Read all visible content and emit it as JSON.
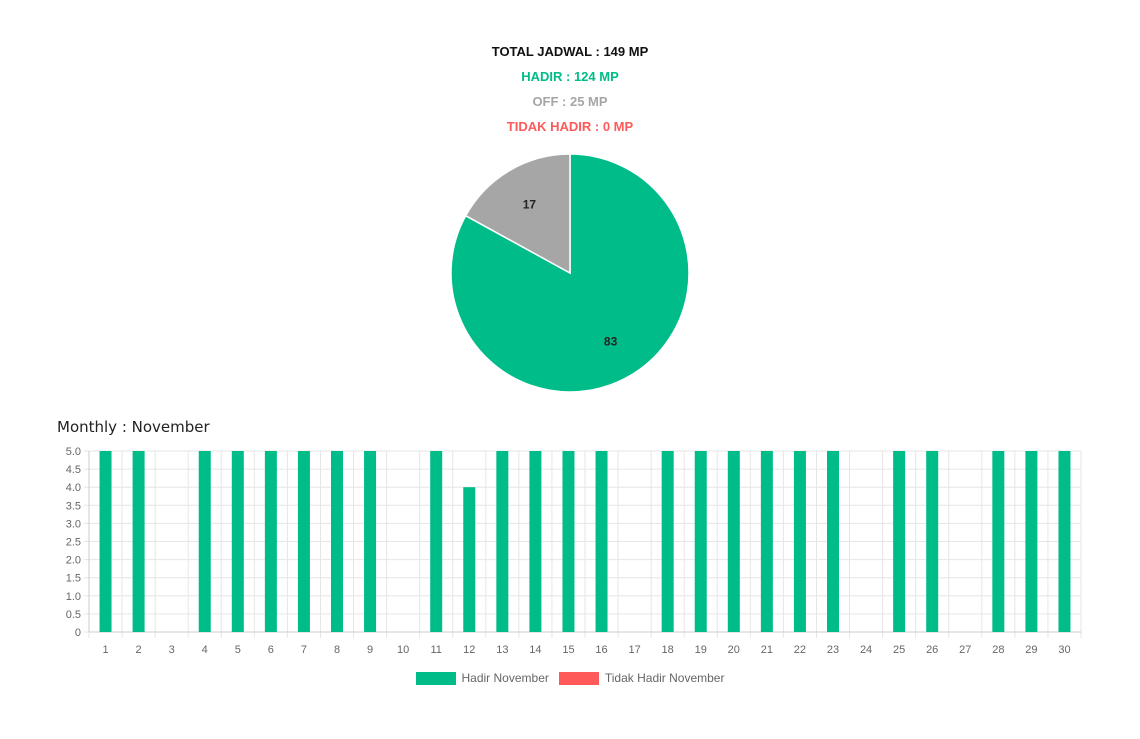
{
  "summary": {
    "total": "TOTAL JADWAL : 149 MP",
    "hadir": "HADIR : 124 MP",
    "off": "OFF : 25 MP",
    "tidak_hadir": "TIDAK HADIR : 0 MP"
  },
  "colors": {
    "total": "#111111",
    "hadir": "#00bc89",
    "off": "#a6a6a6",
    "tidak_hadir": "#ff5a5a",
    "grid": "#e6e6e6",
    "tick": "#666666"
  },
  "monthly": {
    "title": "Monthly : November"
  },
  "chart_data": [
    {
      "type": "pie",
      "slices": [
        {
          "label": "Hadir",
          "value": 83,
          "display": "83",
          "color": "#00bc89"
        },
        {
          "label": "Off",
          "value": 17,
          "display": "17",
          "color": "#a6a6a6"
        }
      ]
    },
    {
      "type": "bar",
      "categories": [
        "1",
        "2",
        "3",
        "4",
        "5",
        "6",
        "7",
        "8",
        "9",
        "10",
        "11",
        "12",
        "13",
        "14",
        "15",
        "16",
        "17",
        "18",
        "19",
        "20",
        "21",
        "22",
        "23",
        "24",
        "25",
        "26",
        "27",
        "28",
        "29",
        "30"
      ],
      "series": [
        {
          "name": "Hadir November",
          "color": "#00bc89",
          "values": [
            5,
            5,
            0,
            5,
            5,
            5,
            5,
            5,
            5,
            0,
            5,
            4,
            5,
            5,
            5,
            5,
            0,
            5,
            5,
            5,
            5,
            5,
            5,
            0,
            5,
            5,
            0,
            5,
            5,
            5
          ]
        },
        {
          "name": "Tidak Hadir November",
          "color": "#ff5a5a",
          "values": [
            0,
            0,
            0,
            0,
            0,
            0,
            0,
            0,
            0,
            0,
            0,
            0,
            0,
            0,
            0,
            0,
            0,
            0,
            0,
            0,
            0,
            0,
            0,
            0,
            0,
            0,
            0,
            0,
            0,
            0
          ]
        }
      ],
      "ylim": [
        0,
        5
      ],
      "ystep": 0.5,
      "yticks": [
        "0",
        "0.5",
        "1.0",
        "1.5",
        "2.0",
        "2.5",
        "3.0",
        "3.5",
        "4.0",
        "4.5",
        "5.0"
      ],
      "grid": true,
      "legend": "bottom"
    }
  ]
}
